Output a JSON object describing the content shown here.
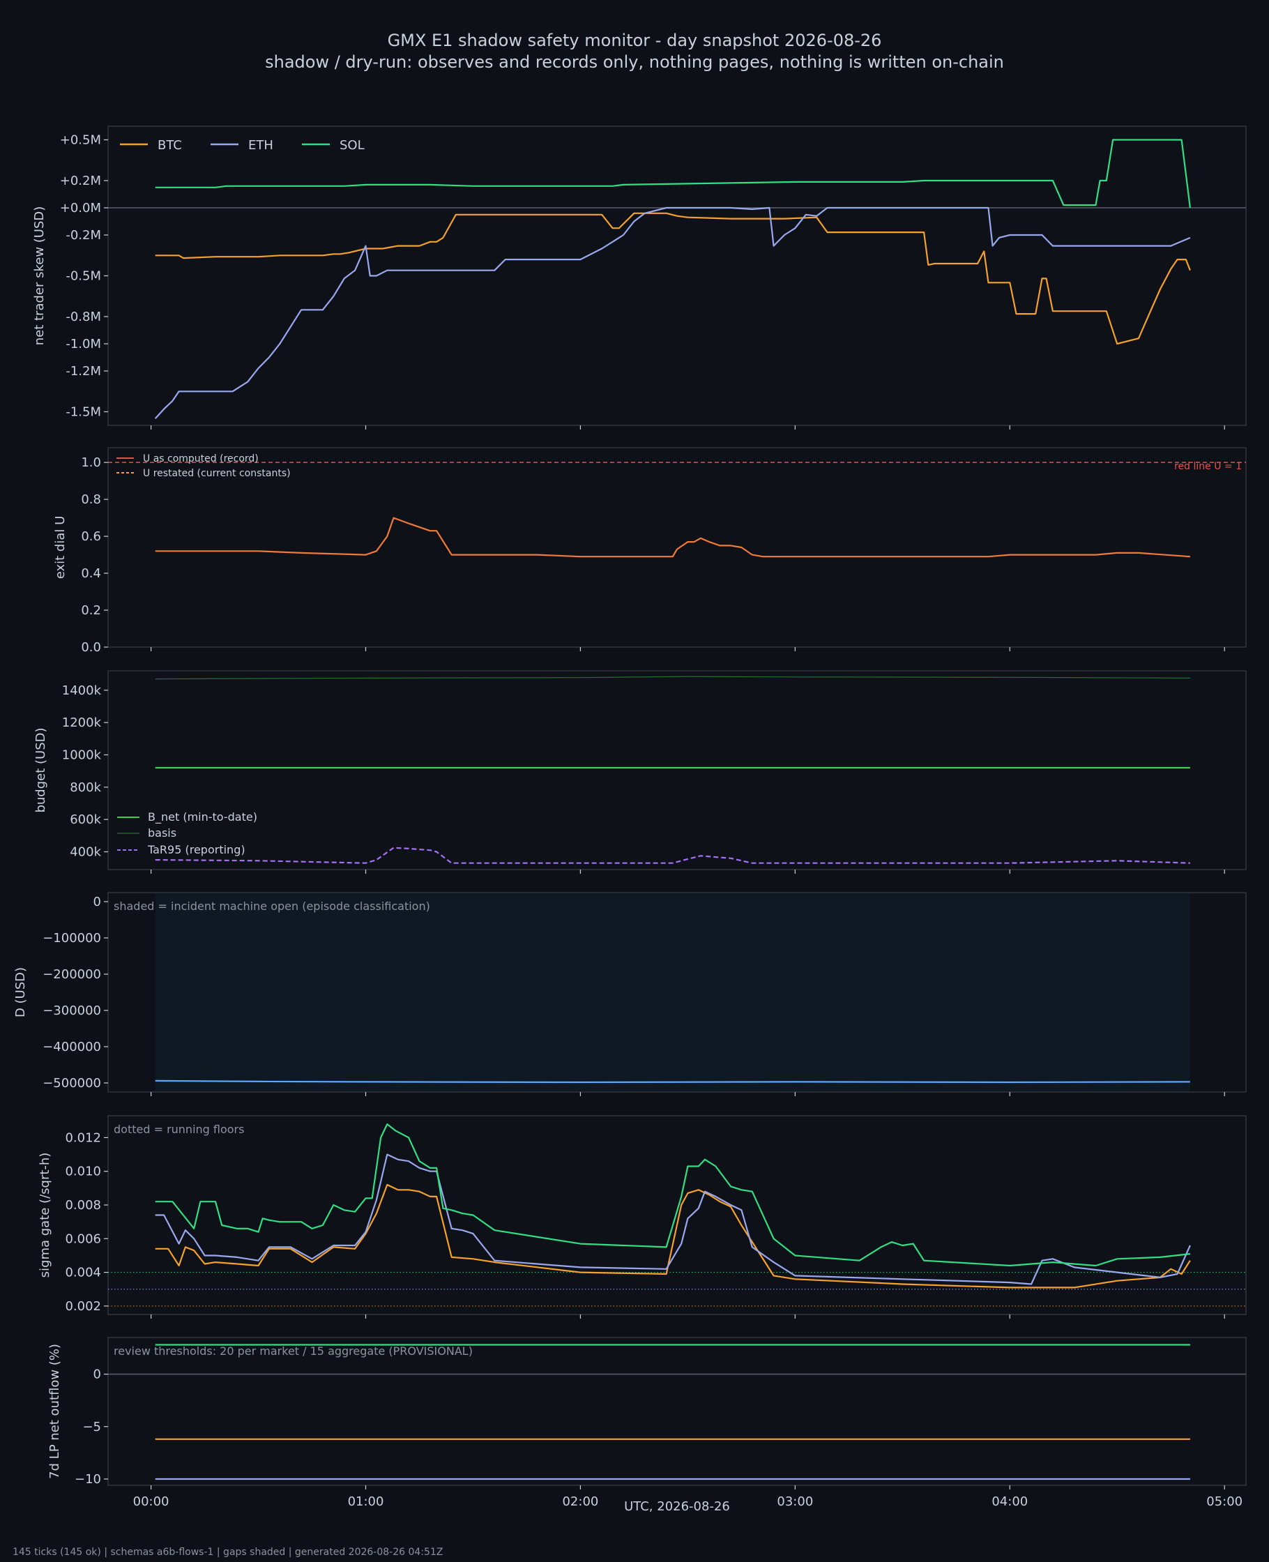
{
  "title": "GMX E1 shadow safety monitor - day snapshot 2026-08-26",
  "subtitle": "shadow / dry-run: observes and records only, nothing pages, nothing is written on-chain",
  "footer": "145 ticks (145 ok) | schemas a6b-flows-1 | gaps shaded | generated 2026-08-26 04:51Z",
  "colors": {
    "bg": "#0d1017",
    "axes_bg": "#0e1117",
    "frame": "#30363d",
    "text": "#c9d1d9",
    "btc": "#f5a12a",
    "eth": "#9aa8f0",
    "sol": "#2fe085",
    "red": "#e5534b",
    "green": "#3fcf4e",
    "purple": "#a371f7",
    "blue": "#58a6ff",
    "shade": "#0f1923"
  },
  "chart_data": [
    {
      "type": "line",
      "ylabel": "net trader skew (USD)",
      "xlabel": "UTC, 2026-08-26",
      "xticks": [
        "00:00",
        "01:00",
        "02:00",
        "03:00",
        "04:00",
        "05:00"
      ],
      "xlim_hours": [
        -0.2,
        5.1
      ],
      "yticks": [
        0.5,
        0.2,
        0.0,
        -0.2,
        -0.5,
        -0.8,
        -1.0,
        -1.2,
        -1.5
      ],
      "ytick_labels": [
        "+0.5M",
        "+0.2M",
        "+0.0M",
        "-0.2M",
        "-0.5M",
        "-0.8M",
        "-1.0M",
        "-1.2M",
        "-1.5M"
      ],
      "ylim": [
        -1.6,
        0.6
      ],
      "reference_line": 0.0,
      "legend": "top-left",
      "series": [
        {
          "name": "BTC",
          "color_key": "btc",
          "x": [
            0.02,
            0.13,
            0.15,
            0.3,
            0.5,
            0.6,
            0.8,
            0.85,
            0.88,
            0.92,
            1.0,
            1.08,
            1.15,
            1.25,
            1.3,
            1.33,
            1.36,
            1.42,
            1.5,
            1.7,
            1.9,
            2.1,
            2.15,
            2.18,
            2.25,
            2.4,
            2.45,
            2.5,
            2.7,
            2.8,
            2.95,
            3.1,
            3.15,
            3.3,
            3.6,
            3.62,
            3.65,
            3.75,
            3.85,
            3.88,
            3.9,
            3.92,
            4.0,
            4.03,
            4.05,
            4.12,
            4.15,
            4.17,
            4.2,
            4.3,
            4.45,
            4.5,
            4.6,
            4.63,
            4.7,
            4.75,
            4.78,
            4.82,
            4.84
          ],
          "y": [
            -0.35,
            -0.35,
            -0.37,
            -0.36,
            -0.36,
            -0.35,
            -0.35,
            -0.34,
            -0.34,
            -0.33,
            -0.3,
            -0.3,
            -0.28,
            -0.28,
            -0.25,
            -0.25,
            -0.22,
            -0.05,
            -0.05,
            -0.05,
            -0.05,
            -0.05,
            -0.15,
            -0.15,
            -0.04,
            -0.04,
            -0.06,
            -0.07,
            -0.08,
            -0.08,
            -0.08,
            -0.07,
            -0.18,
            -0.18,
            -0.18,
            -0.42,
            -0.41,
            -0.41,
            -0.41,
            -0.32,
            -0.55,
            -0.55,
            -0.55,
            -0.78,
            -0.78,
            -0.78,
            -0.52,
            -0.52,
            -0.76,
            -0.76,
            -0.76,
            -1.0,
            -0.96,
            -0.85,
            -0.6,
            -0.45,
            -0.38,
            -0.38,
            -0.46
          ]
        },
        {
          "name": "ETH",
          "color_key": "eth",
          "x": [
            0.02,
            0.06,
            0.1,
            0.13,
            0.2,
            0.3,
            0.38,
            0.45,
            0.5,
            0.55,
            0.6,
            0.7,
            0.8,
            0.85,
            0.9,
            0.95,
            1.0,
            1.02,
            1.05,
            1.1,
            1.15,
            1.4,
            1.6,
            1.65,
            1.7,
            2.0,
            2.1,
            2.15,
            2.2,
            2.25,
            2.3,
            2.4,
            2.5,
            2.6,
            2.7,
            2.8,
            2.88,
            2.9,
            2.95,
            3.0,
            3.05,
            3.1,
            3.15,
            3.3,
            3.5,
            3.9,
            3.92,
            3.95,
            4.0,
            4.05,
            4.15,
            4.2,
            4.4,
            4.5,
            4.7,
            4.75,
            4.84
          ],
          "y": [
            -1.55,
            -1.48,
            -1.42,
            -1.35,
            -1.35,
            -1.35,
            -1.35,
            -1.28,
            -1.18,
            -1.1,
            -1.0,
            -0.75,
            -0.75,
            -0.65,
            -0.52,
            -0.46,
            -0.28,
            -0.5,
            -0.5,
            -0.46,
            -0.46,
            -0.46,
            -0.46,
            -0.38,
            -0.38,
            -0.38,
            -0.3,
            -0.25,
            -0.2,
            -0.1,
            -0.04,
            0.0,
            0.0,
            0.0,
            0.0,
            -0.01,
            0.0,
            -0.28,
            -0.2,
            -0.15,
            -0.05,
            -0.06,
            0.0,
            0.0,
            0.0,
            0.0,
            -0.28,
            -0.22,
            -0.2,
            -0.2,
            -0.2,
            -0.28,
            -0.28,
            -0.28,
            -0.28,
            -0.28,
            -0.22
          ]
        },
        {
          "name": "SOL",
          "color_key": "sol",
          "x": [
            0.02,
            0.3,
            0.35,
            0.9,
            1.0,
            1.3,
            1.5,
            2.0,
            2.15,
            2.2,
            2.6,
            3.0,
            3.5,
            3.6,
            4.2,
            4.25,
            4.4,
            4.42,
            4.45,
            4.48,
            4.5,
            4.8,
            4.84
          ],
          "y": [
            0.15,
            0.15,
            0.16,
            0.16,
            0.17,
            0.17,
            0.16,
            0.16,
            0.16,
            0.17,
            0.18,
            0.19,
            0.19,
            0.2,
            0.2,
            0.02,
            0.02,
            0.2,
            0.2,
            0.5,
            0.5,
            0.5,
            0.0
          ]
        }
      ]
    },
    {
      "type": "line",
      "ylabel": "exit dial U",
      "yticks": [
        0.0,
        0.2,
        0.4,
        0.6,
        0.8,
        1.0
      ],
      "ytick_labels": [
        "0.0",
        "0.2",
        "0.4",
        "0.6",
        "0.8",
        "1.0"
      ],
      "ylim": [
        0.0,
        1.08
      ],
      "red_line": {
        "value": 1.0,
        "label": "red line U = 1"
      },
      "legend": "top-left",
      "series": [
        {
          "name": "U as computed (record)",
          "color_key": "red",
          "style": "solid",
          "x": [],
          "y": []
        },
        {
          "name": "U restated (current constants)",
          "color_key": "btc",
          "style": "dashed",
          "x": [],
          "y": []
        },
        {
          "name": "",
          "color_key": "computed_line",
          "x": [
            0.02,
            0.2,
            0.5,
            0.7,
            1.0,
            1.05,
            1.1,
            1.13,
            1.2,
            1.25,
            1.3,
            1.33,
            1.4,
            1.8,
            2.0,
            2.2,
            2.43,
            2.45,
            2.5,
            2.53,
            2.56,
            2.6,
            2.65,
            2.7,
            2.75,
            2.8,
            2.85,
            3.0,
            3.6,
            3.9,
            4.0,
            4.4,
            4.5,
            4.6,
            4.84
          ],
          "y": [
            0.52,
            0.52,
            0.52,
            0.51,
            0.5,
            0.52,
            0.6,
            0.7,
            0.67,
            0.65,
            0.63,
            0.63,
            0.5,
            0.5,
            0.49,
            0.49,
            0.49,
            0.53,
            0.57,
            0.57,
            0.59,
            0.57,
            0.55,
            0.55,
            0.54,
            0.5,
            0.49,
            0.49,
            0.49,
            0.49,
            0.5,
            0.5,
            0.51,
            0.51,
            0.49
          ]
        }
      ]
    },
    {
      "type": "line",
      "ylabel": "budget (USD)",
      "yticks": [
        400000,
        600000,
        800000,
        1000000,
        1200000,
        1400000
      ],
      "ytick_labels": [
        "400k",
        "600k",
        "800k",
        "1000k",
        "1200k",
        "1400k"
      ],
      "ylim": [
        290000,
        1520000
      ],
      "legend": "bottom-left",
      "series": [
        {
          "name": "B_net (min-to-date)",
          "color_key": "green",
          "x": [
            0.02,
            4.84
          ],
          "y": [
            920000,
            920000
          ]
        },
        {
          "name": "basis",
          "color_key": "basis",
          "x": [
            0.02,
            1.0,
            2.0,
            2.5,
            3.0,
            4.0,
            4.84
          ],
          "y": [
            1470000,
            1475000,
            1478000,
            1485000,
            1482000,
            1480000,
            1475000
          ]
        },
        {
          "name": "TaR95 (reporting)",
          "color_key": "purple",
          "style": "dashed",
          "x": [
            0.02,
            0.5,
            1.0,
            1.05,
            1.13,
            1.2,
            1.3,
            1.33,
            1.4,
            2.0,
            2.43,
            2.5,
            2.56,
            2.7,
            2.8,
            3.0,
            4.0,
            4.5,
            4.84
          ],
          "y": [
            350000,
            345000,
            330000,
            350000,
            425000,
            420000,
            410000,
            400000,
            330000,
            330000,
            330000,
            355000,
            375000,
            360000,
            330000,
            330000,
            330000,
            345000,
            330000
          ]
        }
      ]
    },
    {
      "type": "area",
      "ylabel": "D (USD)",
      "yticks": [
        0,
        -100000,
        -200000,
        -300000,
        -400000,
        -500000
      ],
      "ytick_labels": [
        "0",
        "−100000",
        "−200000",
        "−300000",
        "−400000",
        "−500000"
      ],
      "ylim": [
        -525000,
        25000
      ],
      "note": "shaded = incident machine open (episode classification)",
      "shaded_range_hours": [
        0.02,
        4.84
      ],
      "series": [
        {
          "name": "",
          "color_key": "blue",
          "x": [
            0.02,
            0.5,
            1.0,
            2.0,
            3.0,
            4.0,
            4.84
          ],
          "y": [
            -494000,
            -496000,
            -497000,
            -498000,
            -497000,
            -498000,
            -497000
          ]
        }
      ]
    },
    {
      "type": "line",
      "ylabel": "sigma gate (/sqrt-h)",
      "yticks": [
        0.002,
        0.004,
        0.006,
        0.008,
        0.01,
        0.012
      ],
      "ytick_labels": [
        "0.002",
        "0.004",
        "0.006",
        "0.008",
        "0.010",
        "0.012"
      ],
      "ylim": [
        0.0015,
        0.0133
      ],
      "note": "dotted = running floors",
      "floors": [
        {
          "color_key": "sol",
          "value": 0.004
        },
        {
          "color_key": "eth",
          "value": 0.003
        },
        {
          "color_key": "btc",
          "value": 0.002
        }
      ],
      "series": [
        {
          "name": "BTC",
          "color_key": "btc",
          "x": [
            0.02,
            0.08,
            0.13,
            0.16,
            0.2,
            0.25,
            0.3,
            0.4,
            0.5,
            0.55,
            0.65,
            0.75,
            0.85,
            0.95,
            1.0,
            1.05,
            1.1,
            1.15,
            1.2,
            1.25,
            1.3,
            1.33,
            1.4,
            1.5,
            1.6,
            2.0,
            2.4,
            2.47,
            2.5,
            2.55,
            2.6,
            2.65,
            2.7,
            2.75,
            2.8,
            2.9,
            3.0,
            3.5,
            4.0,
            4.3,
            4.5,
            4.7,
            4.75,
            4.8,
            4.84
          ],
          "y": [
            0.0054,
            0.0054,
            0.0044,
            0.0055,
            0.0053,
            0.0045,
            0.0046,
            0.0045,
            0.0044,
            0.0054,
            0.0054,
            0.0046,
            0.0055,
            0.0054,
            0.0063,
            0.0075,
            0.0092,
            0.0089,
            0.0089,
            0.0088,
            0.0085,
            0.0085,
            0.0049,
            0.0048,
            0.0046,
            0.004,
            0.0039,
            0.008,
            0.0087,
            0.0089,
            0.0086,
            0.0082,
            0.0079,
            0.0068,
            0.0058,
            0.0038,
            0.0036,
            0.0033,
            0.0031,
            0.0031,
            0.0035,
            0.0037,
            0.0042,
            0.0039,
            0.0047
          ]
        },
        {
          "name": "ETH",
          "color_key": "eth",
          "x": [
            0.02,
            0.06,
            0.13,
            0.16,
            0.2,
            0.25,
            0.3,
            0.4,
            0.5,
            0.55,
            0.65,
            0.75,
            0.85,
            0.95,
            1.0,
            1.05,
            1.1,
            1.15,
            1.2,
            1.25,
            1.3,
            1.33,
            1.4,
            1.45,
            1.5,
            1.6,
            2.0,
            2.4,
            2.47,
            2.5,
            2.55,
            2.58,
            2.63,
            2.7,
            2.75,
            2.8,
            2.9,
            3.0,
            3.5,
            4.0,
            4.1,
            4.15,
            4.2,
            4.3,
            4.5,
            4.7,
            4.78,
            4.84
          ],
          "y": [
            0.0074,
            0.0074,
            0.0057,
            0.0065,
            0.006,
            0.005,
            0.005,
            0.0049,
            0.0047,
            0.0055,
            0.0055,
            0.0048,
            0.0056,
            0.0056,
            0.0064,
            0.0083,
            0.011,
            0.0107,
            0.0106,
            0.0102,
            0.01,
            0.01,
            0.0066,
            0.0065,
            0.0063,
            0.0047,
            0.0043,
            0.0042,
            0.0057,
            0.0072,
            0.0078,
            0.0088,
            0.0085,
            0.008,
            0.0077,
            0.0055,
            0.0046,
            0.0038,
            0.0036,
            0.0034,
            0.0033,
            0.0047,
            0.0048,
            0.0043,
            0.004,
            0.0037,
            0.0039,
            0.0056
          ]
        },
        {
          "name": "SOL",
          "color_key": "sol",
          "x": [
            0.02,
            0.1,
            0.15,
            0.2,
            0.23,
            0.27,
            0.3,
            0.33,
            0.4,
            0.45,
            0.5,
            0.52,
            0.55,
            0.6,
            0.7,
            0.75,
            0.8,
            0.85,
            0.9,
            0.95,
            1.0,
            1.03,
            1.07,
            1.1,
            1.14,
            1.2,
            1.25,
            1.3,
            1.33,
            1.36,
            1.4,
            1.45,
            1.5,
            1.6,
            2.0,
            2.4,
            2.47,
            2.5,
            2.55,
            2.58,
            2.63,
            2.7,
            2.75,
            2.8,
            2.9,
            3.0,
            3.3,
            3.4,
            3.45,
            3.5,
            3.55,
            3.6,
            4.0,
            4.2,
            4.4,
            4.5,
            4.7,
            4.84
          ],
          "y": [
            0.0082,
            0.0082,
            0.0074,
            0.0066,
            0.0082,
            0.0082,
            0.0082,
            0.0068,
            0.0066,
            0.0066,
            0.0064,
            0.0072,
            0.0071,
            0.007,
            0.007,
            0.0066,
            0.0068,
            0.008,
            0.0077,
            0.0076,
            0.0084,
            0.0084,
            0.012,
            0.0128,
            0.0124,
            0.012,
            0.0106,
            0.0102,
            0.0102,
            0.0078,
            0.0077,
            0.0075,
            0.0074,
            0.0065,
            0.0057,
            0.0055,
            0.0085,
            0.0103,
            0.0103,
            0.0107,
            0.0103,
            0.0091,
            0.0089,
            0.0088,
            0.006,
            0.005,
            0.0047,
            0.0055,
            0.0058,
            0.0056,
            0.0057,
            0.0047,
            0.0044,
            0.0046,
            0.0044,
            0.0048,
            0.0049,
            0.0051
          ]
        }
      ]
    },
    {
      "type": "line",
      "ylabel": "7d LP net outflow (%)",
      "yticks": [
        0,
        -5,
        -10
      ],
      "ytick_labels": [
        "0",
        "−5",
        "−10"
      ],
      "ylim": [
        -10.6,
        3.5
      ],
      "reference_line": 0,
      "note": "review thresholds: 20 per market / 15 aggregate (PROVISIONAL)",
      "series": [
        {
          "name": "SOL",
          "color_key": "sol",
          "x": [
            0.02,
            4.84
          ],
          "y": [
            2.8,
            2.8
          ]
        },
        {
          "name": "BTC",
          "color_key": "btc",
          "x": [
            0.02,
            4.84
          ],
          "y": [
            -6.2,
            -6.2
          ]
        },
        {
          "name": "ETH",
          "color_key": "eth",
          "x": [
            0.02,
            4.84
          ],
          "y": [
            -10.0,
            -10.0
          ]
        }
      ]
    }
  ]
}
